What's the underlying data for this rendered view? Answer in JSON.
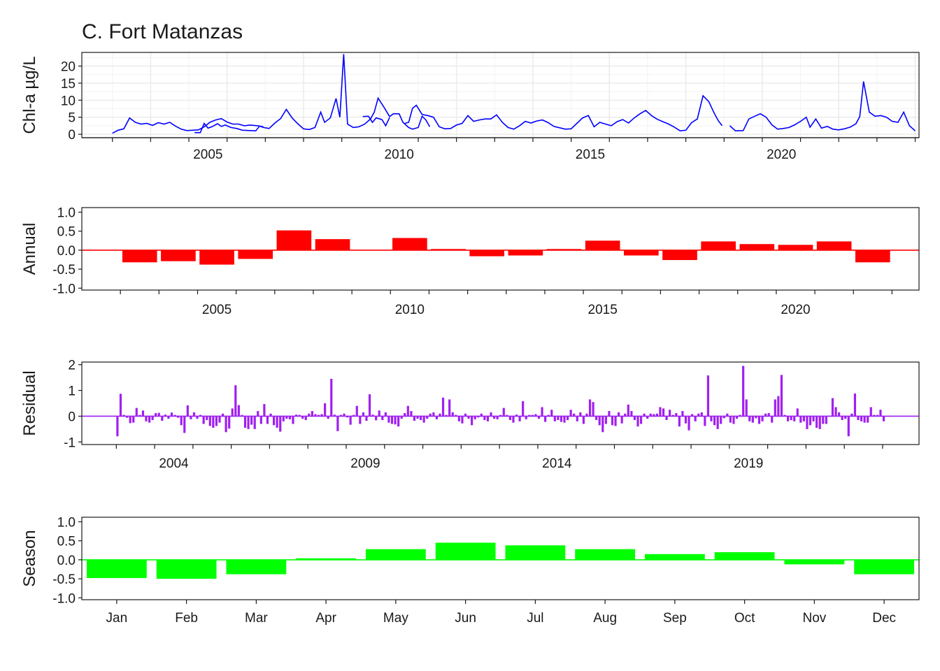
{
  "title": "C. Fort Matanzas",
  "colors": {
    "raw": "#0000ff",
    "annual": "#ff0000",
    "residual": "#a020f0",
    "season": "#00ff00"
  },
  "chart_data": [
    {
      "type": "line",
      "ylabel": "Chl-a µg/L",
      "xlabel": "",
      "ylim": [
        -1,
        24
      ],
      "yticks": [
        "0",
        "5",
        "10",
        "15",
        "20"
      ],
      "xlim": [
        2002.2,
        2024.1
      ],
      "xticks": [
        "2005",
        "2010",
        "2015",
        "2020"
      ],
      "grid": true,
      "series": [
        {
          "segments": [
            [
              [
                2003.0,
                0.3
              ],
              [
                2003.15,
                1.2
              ],
              [
                2003.3,
                1.6
              ],
              [
                2003.45,
                4.8
              ],
              [
                2003.6,
                3.5
              ],
              [
                2003.75,
                3.0
              ],
              [
                2003.9,
                3.2
              ],
              [
                2004.05,
                2.6
              ],
              [
                2004.2,
                3.4
              ],
              [
                2004.35,
                3.0
              ],
              [
                2004.5,
                3.5
              ],
              [
                2004.65,
                2.4
              ],
              [
                2004.8,
                1.5
              ],
              [
                2004.95,
                1.1
              ],
              [
                2005.1,
                1.2
              ],
              [
                2005.25,
                1.3
              ],
              [
                2005.4,
                2.2
              ],
              [
                2005.55,
                3.5
              ],
              [
                2005.7,
                4.2
              ],
              [
                2005.85,
                4.6
              ],
              [
                2006.0,
                3.6
              ],
              [
                2006.15,
                3.0
              ],
              [
                2006.3,
                3.0
              ],
              [
                2006.45,
                2.5
              ],
              [
                2006.6,
                2.7
              ],
              [
                2006.8,
                2.5
              ],
              [
                2006.95,
                2.2
              ]
            ],
            [
              [
                2005.15,
                0.5
              ],
              [
                2005.3,
                0.5
              ],
              [
                2005.4,
                3.2
              ],
              [
                2005.5,
                1.8
              ],
              [
                2005.6,
                2.2
              ],
              [
                2005.75,
                3.1
              ],
              [
                2005.85,
                2.3
              ],
              [
                2005.95,
                2.7
              ],
              [
                2006.1,
                2.0
              ],
              [
                2006.25,
                1.7
              ],
              [
                2006.4,
                1.2
              ],
              [
                2006.6,
                1.1
              ],
              [
                2006.75,
                1.0
              ],
              [
                2006.85,
                2.4
              ],
              [
                2006.95,
                2.0
              ],
              [
                2007.1,
                1.7
              ],
              [
                2007.25,
                3.3
              ],
              [
                2007.4,
                4.6
              ],
              [
                2007.55,
                7.3
              ],
              [
                2007.7,
                4.8
              ],
              [
                2007.85,
                3.1
              ],
              [
                2008.0,
                1.6
              ],
              [
                2008.15,
                1.4
              ],
              [
                2008.3,
                2.0
              ],
              [
                2008.45,
                6.5
              ],
              [
                2008.55,
                3.5
              ],
              [
                2008.7,
                4.8
              ],
              [
                2008.85,
                10.5
              ],
              [
                2008.95,
                5.0
              ],
              [
                2009.05,
                23.5
              ],
              [
                2009.15,
                3.0
              ],
              [
                2009.3,
                2.0
              ],
              [
                2009.45,
                2.2
              ],
              [
                2009.6,
                3.0
              ],
              [
                2009.75,
                4.5
              ],
              [
                2009.85,
                6.5
              ],
              [
                2009.95,
                10.6
              ],
              [
                2010.1,
                8.0
              ],
              [
                2010.25,
                5.2
              ],
              [
                2010.35,
                6.0
              ],
              [
                2010.5,
                6.0
              ],
              [
                2010.6,
                3.5
              ],
              [
                2010.75,
                2.0
              ],
              [
                2010.85,
                1.5
              ],
              [
                2011.0,
                2.0
              ],
              [
                2011.1,
                5.3
              ],
              [
                2011.2,
                4.2
              ],
              [
                2011.3,
                2.2
              ]
            ],
            [
              [
                2009.55,
                5.2
              ],
              [
                2009.7,
                5.3
              ],
              [
                2009.8,
                3.5
              ],
              [
                2009.9,
                4.8
              ],
              [
                2010.05,
                4.3
              ],
              [
                2010.15,
                2.5
              ],
              [
                2010.25,
                4.9
              ]
            ],
            [
              [
                2010.65,
                3.2
              ],
              [
                2010.75,
                3.5
              ],
              [
                2010.85,
                7.6
              ],
              [
                2010.95,
                8.5
              ],
              [
                2011.1,
                5.8
              ],
              [
                2011.25,
                5.5
              ],
              [
                2011.4,
                5.0
              ],
              [
                2011.55,
                2.2
              ],
              [
                2011.7,
                1.6
              ],
              [
                2011.85,
                1.7
              ],
              [
                2012.0,
                2.7
              ],
              [
                2012.15,
                3.2
              ],
              [
                2012.3,
                5.5
              ],
              [
                2012.45,
                3.8
              ],
              [
                2012.6,
                4.2
              ],
              [
                2012.75,
                4.5
              ],
              [
                2012.9,
                4.5
              ],
              [
                2013.05,
                5.7
              ],
              [
                2013.2,
                3.5
              ],
              [
                2013.35,
                2.0
              ],
              [
                2013.5,
                1.5
              ],
              [
                2013.65,
                2.5
              ],
              [
                2013.8,
                3.8
              ],
              [
                2013.95,
                3.3
              ],
              [
                2014.1,
                3.9
              ],
              [
                2014.25,
                4.2
              ],
              [
                2014.4,
                3.4
              ],
              [
                2014.55,
                2.3
              ],
              [
                2014.7,
                1.9
              ],
              [
                2014.85,
                1.5
              ],
              [
                2015.0,
                1.6
              ],
              [
                2015.15,
                3.2
              ],
              [
                2015.3,
                4.8
              ],
              [
                2015.45,
                5.5
              ],
              [
                2015.6,
                2.2
              ],
              [
                2015.75,
                3.5
              ],
              [
                2015.9,
                3.0
              ],
              [
                2016.05,
                2.5
              ],
              [
                2016.2,
                3.7
              ],
              [
                2016.35,
                4.3
              ],
              [
                2016.5,
                3.3
              ],
              [
                2016.65,
                4.8
              ],
              [
                2016.8,
                6.0
              ],
              [
                2016.95,
                7.0
              ],
              [
                2017.1,
                5.5
              ],
              [
                2017.25,
                4.4
              ],
              [
                2017.4,
                3.7
              ],
              [
                2017.55,
                3.0
              ],
              [
                2017.7,
                2.1
              ],
              [
                2017.85,
                1.0
              ],
              [
                2018.0,
                1.2
              ],
              [
                2018.15,
                3.4
              ],
              [
                2018.3,
                4.5
              ],
              [
                2018.45,
                11.3
              ],
              [
                2018.6,
                9.6
              ],
              [
                2018.75,
                6.0
              ],
              [
                2018.85,
                4.0
              ],
              [
                2018.95,
                2.5
              ]
            ],
            [
              [
                2019.15,
                2.5
              ],
              [
                2019.3,
                1.0
              ],
              [
                2019.5,
                1.1
              ],
              [
                2019.65,
                4.5
              ],
              [
                2019.8,
                5.3
              ],
              [
                2019.95,
                6.0
              ],
              [
                2020.1,
                5.0
              ],
              [
                2020.25,
                2.8
              ],
              [
                2020.4,
                1.5
              ],
              [
                2020.55,
                1.7
              ],
              [
                2020.7,
                2.0
              ],
              [
                2020.85,
                2.8
              ],
              [
                2021.0,
                3.8
              ],
              [
                2021.15,
                5.0
              ],
              [
                2021.25,
                2.1
              ],
              [
                2021.4,
                4.5
              ],
              [
                2021.55,
                1.8
              ],
              [
                2021.7,
                2.3
              ],
              [
                2021.85,
                1.5
              ],
              [
                2022.0,
                1.3
              ],
              [
                2022.15,
                1.6
              ],
              [
                2022.3,
                2.1
              ],
              [
                2022.45,
                3.1
              ],
              [
                2022.55,
                5.2
              ],
              [
                2022.65,
                15.5
              ],
              [
                2022.8,
                6.5
              ],
              [
                2022.95,
                5.3
              ],
              [
                2023.1,
                5.5
              ],
              [
                2023.25,
                5.0
              ],
              [
                2023.4,
                3.8
              ],
              [
                2023.55,
                3.5
              ],
              [
                2023.7,
                6.5
              ],
              [
                2023.85,
                2.5
              ],
              [
                2024.0,
                1.0
              ]
            ]
          ]
        }
      ]
    },
    {
      "type": "bar",
      "ylabel": "Annual",
      "ylim": [
        -1.05,
        1.12
      ],
      "yticks": [
        "-1.0",
        "-0.5",
        "0.0",
        "0.5",
        "1.0"
      ],
      "xlim": [
        2002.0,
        2023.7
      ],
      "xticks": [
        "2005",
        "2010",
        "2015",
        "2020"
      ],
      "x": [
        2003,
        2004,
        2005,
        2006,
        2007,
        2008,
        2009,
        2010,
        2011,
        2012,
        2013,
        2014,
        2015,
        2016,
        2017,
        2018,
        2019,
        2020,
        2021,
        2022
      ],
      "values": [
        -0.32,
        -0.29,
        -0.38,
        -0.23,
        0.52,
        0.29,
        0.0,
        0.32,
        0.03,
        -0.16,
        -0.14,
        0.03,
        0.25,
        -0.14,
        -0.26,
        0.23,
        0.16,
        0.14,
        0.23,
        -0.32
      ]
    },
    {
      "type": "bar",
      "ylabel": "Residual",
      "ylim": [
        -1.1,
        2.1
      ],
      "yticks": [
        "-1",
        "0",
        "1",
        "2"
      ],
      "xlim": [
        2002.1,
        2023.95
      ],
      "xticks": [
        "2004",
        "2009",
        "2014",
        "2019"
      ],
      "x_start": 2003.0,
      "step": 0.08333,
      "values": [
        -0.78,
        0.87,
        0.05,
        -0.06,
        -0.27,
        -0.25,
        0.32,
        0.05,
        0.22,
        -0.2,
        -0.25,
        -0.15,
        0.12,
        0.13,
        -0.18,
        0.06,
        -0.1,
        0.14,
        0.05,
        -0.06,
        -0.35,
        -0.65,
        0.42,
        -0.12,
        0.15,
        -0.1,
        0.05,
        -0.3,
        -0.15,
        -0.38,
        -0.45,
        -0.38,
        -0.25,
        0.1,
        -0.62,
        -0.48,
        0.3,
        1.2,
        0.43,
        0.05,
        -0.45,
        -0.5,
        -0.33,
        -0.5,
        0.2,
        -0.3,
        0.47,
        -0.3,
        0.1,
        -0.35,
        -0.45,
        -0.6,
        -0.2,
        -0.1,
        -0.12,
        -0.3,
        0.06,
        0.05,
        -0.1,
        -0.15,
        0.1,
        0.2,
        0.08,
        0.05,
        0.08,
        0.5,
        -0.1,
        1.45,
        0.06,
        -0.58,
        0.05,
        0.1,
        -0.05,
        -0.33,
        0.05,
        0.4,
        -0.3,
        0.15,
        -0.18,
        0.85,
        0.06,
        -0.16,
        0.22,
        -0.15,
        0.15,
        -0.25,
        -0.3,
        -0.32,
        -0.4,
        -0.1,
        0.12,
        0.4,
        0.2,
        -0.18,
        -0.1,
        -0.15,
        -0.25,
        -0.1,
        0.1,
        0.15,
        -0.12,
        0.1,
        0.72,
        0.05,
        0.65,
        0.15,
        0.05,
        -0.2,
        -0.28,
        0.1,
        -0.1,
        -0.35,
        -0.12,
        -0.05,
        0.1,
        -0.15,
        -0.2,
        0.15,
        -0.1,
        -0.12,
        0.05,
        0.32,
        0.05,
        -0.15,
        -0.25,
        0.06,
        -0.2,
        0.58,
        -0.12,
        0.05,
        0.05,
        0.08,
        -0.1,
        0.35,
        -0.22,
        0.05,
        0.25,
        -0.2,
        -0.15,
        -0.22,
        -0.25,
        -0.15,
        0.25,
        0.1,
        -0.2,
        0.15,
        -0.3,
        0.1,
        0.65,
        0.55,
        -0.15,
        -0.35,
        -0.62,
        -0.3,
        0.2,
        -0.35,
        -0.38,
        0.15,
        -0.28,
        0.1,
        0.45,
        0.2,
        -0.15,
        -0.4,
        -0.3,
        0.1,
        -0.1,
        0.1,
        0.08,
        0.1,
        0.35,
        0.3,
        -0.15,
        0.25,
        0.05,
        0.12,
        -0.4,
        0.2,
        -0.28,
        -0.55,
        0.08,
        -0.2,
        0.1,
        0.15,
        -0.38,
        1.58,
        -0.2,
        -0.35,
        -0.5,
        -0.3,
        -0.08,
        0.1,
        -0.25,
        -0.3,
        -0.1,
        0.05,
        1.95,
        0.65,
        -0.2,
        -0.25,
        -0.08,
        -0.3,
        -0.2,
        0.1,
        0.12,
        -0.25,
        0.65,
        0.78,
        1.6,
        0.05,
        -0.2,
        -0.15,
        -0.2,
        0.3,
        -0.25,
        -0.2,
        -0.5,
        -0.35,
        -0.2,
        -0.45,
        -0.5,
        -0.3,
        -0.3,
        0.02,
        0.7,
        0.35,
        0.15,
        -0.15,
        -0.1,
        -0.78,
        0.1,
        0.88,
        -0.15,
        -0.2,
        -0.25,
        -0.25,
        0.35,
        0.05,
        0.05,
        0.25,
        -0.2
      ]
    },
    {
      "type": "bar",
      "ylabel": "Season",
      "ylim": [
        -1.05,
        1.12
      ],
      "yticks": [
        "-1.0",
        "-0.5",
        "0.0",
        "0.5",
        "1.0"
      ],
      "categories": [
        "Jan",
        "Feb",
        "Mar",
        "Apr",
        "May",
        "Jun",
        "Jul",
        "Aug",
        "Sep",
        "Oct",
        "Nov",
        "Dec"
      ],
      "values": [
        -0.48,
        -0.5,
        -0.38,
        0.04,
        0.28,
        0.45,
        0.38,
        0.28,
        0.15,
        0.2,
        -0.12,
        -0.38
      ]
    }
  ]
}
